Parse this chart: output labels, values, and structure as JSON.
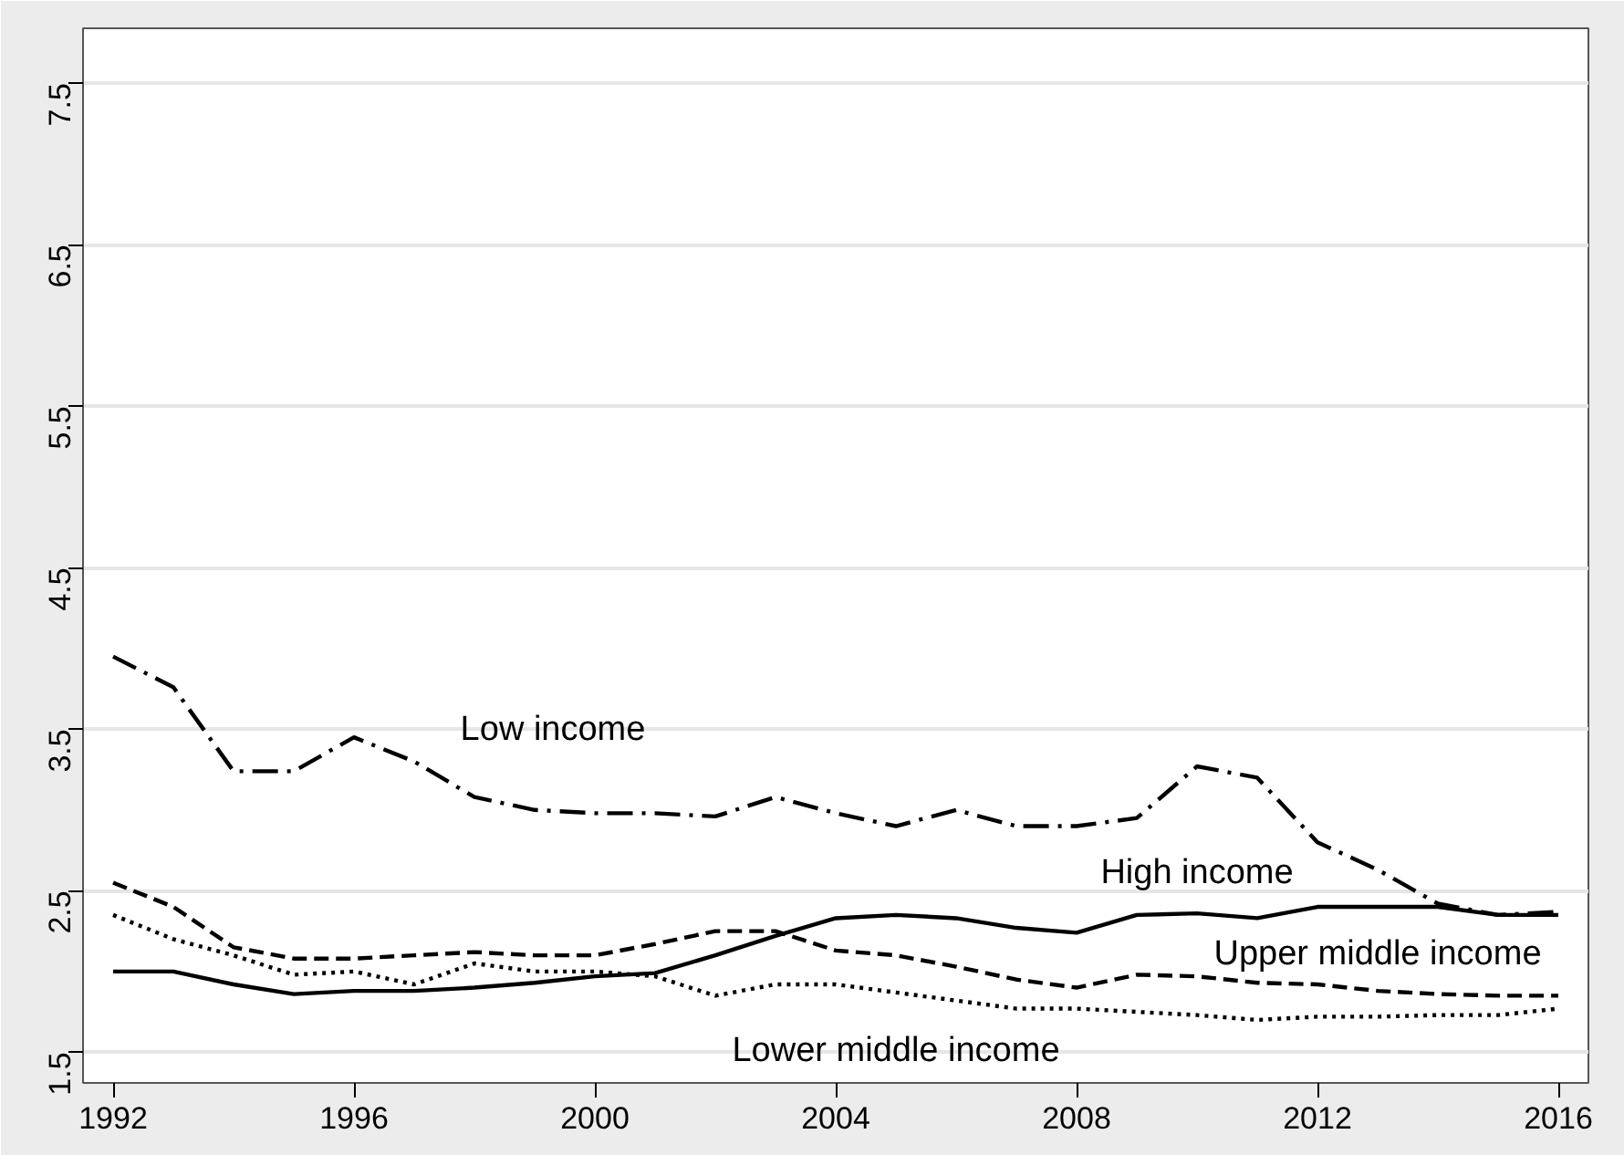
{
  "chart_data": {
    "type": "line",
    "x": [
      1992,
      1993,
      1994,
      1995,
      1996,
      1997,
      1998,
      1999,
      2000,
      2001,
      2002,
      2003,
      2004,
      2005,
      2006,
      2007,
      2008,
      2009,
      2010,
      2011,
      2012,
      2013,
      2014,
      2015,
      2016
    ],
    "series": [
      {
        "name": "Low income",
        "color": "#000000",
        "line_style": "dashdot",
        "values": [
          3.95,
          3.76,
          3.24,
          3.24,
          3.45,
          3.3,
          3.08,
          3.0,
          2.98,
          2.98,
          2.96,
          3.08,
          2.98,
          2.9,
          3.0,
          2.9,
          2.9,
          2.95,
          3.27,
          3.2,
          2.8,
          2.63,
          2.42,
          2.35,
          2.37
        ]
      },
      {
        "name": "High income",
        "color": "#000000",
        "line_style": "solid",
        "values": [
          2.0,
          2.0,
          1.92,
          1.86,
          1.88,
          1.88,
          1.9,
          1.93,
          1.97,
          1.99,
          2.1,
          2.22,
          2.33,
          2.35,
          2.33,
          2.27,
          2.24,
          2.35,
          2.36,
          2.33,
          2.4,
          2.4,
          2.4,
          2.35,
          2.35
        ]
      },
      {
        "name": "Upper middle income",
        "color": "#000000",
        "line_style": "dashed",
        "values": [
          2.55,
          2.4,
          2.15,
          2.08,
          2.08,
          2.1,
          2.12,
          2.1,
          2.1,
          2.17,
          2.25,
          2.25,
          2.13,
          2.1,
          2.03,
          1.95,
          1.9,
          1.98,
          1.97,
          1.93,
          1.92,
          1.88,
          1.86,
          1.85,
          1.85
        ]
      },
      {
        "name": "Lower middle income",
        "color": "#000000",
        "line_style": "dotted",
        "values": [
          2.35,
          2.2,
          2.1,
          1.98,
          2.0,
          1.92,
          2.05,
          2.0,
          2.0,
          1.97,
          1.85,
          1.92,
          1.92,
          1.87,
          1.82,
          1.77,
          1.77,
          1.75,
          1.73,
          1.7,
          1.72,
          1.72,
          1.73,
          1.73,
          1.77
        ]
      }
    ],
    "xlim": [
      1991.5,
      2016.5
    ],
    "ylim": [
      1.31,
      7.84
    ],
    "xticks": [
      1992,
      1996,
      2000,
      2004,
      2008,
      2012,
      2016
    ],
    "yticks": [
      1.5,
      2.5,
      3.5,
      4.5,
      5.5,
      6.5,
      7.5
    ],
    "grid": "y"
  }
}
